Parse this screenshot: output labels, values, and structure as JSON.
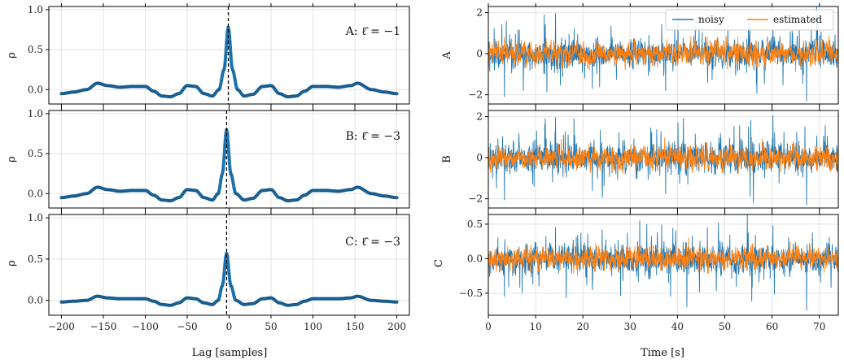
{
  "colors": {
    "series": "#1f77b4",
    "estimated": "#ff7f0e",
    "grid": "#e3e3e3",
    "axis": "#000000",
    "zero_lag_line": "#000000"
  },
  "chart_data": [
    {
      "type": "line",
      "panel": "A",
      "annotation": "A: ℓ̂ = −1",
      "ylabel": "ρ",
      "xlim": [
        -215,
        215
      ],
      "ylim": [
        -0.18,
        1.04
      ],
      "yticks": [
        0.0,
        0.5,
        1.0
      ],
      "ytick_labels": [
        "0.0",
        "0.5",
        "1.0"
      ],
      "grid": true,
      "zero_lag_marker": -1,
      "peak_rho": 0.78,
      "shape_points": [
        [
          -200,
          -0.05
        ],
        [
          -185,
          -0.03
        ],
        [
          -170,
          0.0
        ],
        [
          -157,
          0.08
        ],
        [
          -145,
          0.05
        ],
        [
          -130,
          0.03
        ],
        [
          -115,
          0.04
        ],
        [
          -100,
          0.04
        ],
        [
          -90,
          -0.02
        ],
        [
          -80,
          -0.08
        ],
        [
          -70,
          -0.09
        ],
        [
          -60,
          -0.05
        ],
        [
          -50,
          0.05
        ],
        [
          -40,
          0.04
        ],
        [
          -30,
          -0.05
        ],
        [
          -20,
          -0.08
        ],
        [
          -12,
          0.0
        ],
        [
          -6,
          0.25
        ],
        [
          -1,
          0.78
        ],
        [
          4,
          0.25
        ],
        [
          10,
          0.0
        ],
        [
          18,
          -0.08
        ],
        [
          28,
          -0.06
        ],
        [
          40,
          0.04
        ],
        [
          50,
          0.05
        ],
        [
          60,
          -0.05
        ],
        [
          70,
          -0.09
        ],
        [
          80,
          -0.08
        ],
        [
          90,
          -0.02
        ],
        [
          100,
          0.04
        ],
        [
          115,
          0.04
        ],
        [
          130,
          0.03
        ],
        [
          145,
          0.05
        ],
        [
          153,
          0.08
        ],
        [
          170,
          0.0
        ],
        [
          185,
          -0.03
        ],
        [
          200,
          -0.05
        ]
      ]
    },
    {
      "type": "line",
      "panel": "B",
      "annotation": "B: ℓ̂ = −3",
      "ylabel": "ρ",
      "xlim": [
        -215,
        215
      ],
      "ylim": [
        -0.18,
        1.04
      ],
      "yticks": [
        0.0,
        0.5,
        1.0
      ],
      "ytick_labels": [
        "0.0",
        "0.5",
        "1.0"
      ],
      "grid": true,
      "zero_lag_marker": -3,
      "peak_rho": 0.8,
      "shape_points": [
        [
          -200,
          -0.05
        ],
        [
          -185,
          -0.03
        ],
        [
          -170,
          0.0
        ],
        [
          -157,
          0.08
        ],
        [
          -145,
          0.05
        ],
        [
          -130,
          0.03
        ],
        [
          -115,
          0.04
        ],
        [
          -100,
          0.04
        ],
        [
          -90,
          -0.02
        ],
        [
          -80,
          -0.08
        ],
        [
          -70,
          -0.09
        ],
        [
          -60,
          -0.05
        ],
        [
          -50,
          0.05
        ],
        [
          -40,
          0.04
        ],
        [
          -30,
          -0.05
        ],
        [
          -20,
          -0.08
        ],
        [
          -13,
          0.0
        ],
        [
          -8,
          0.25
        ],
        [
          -3,
          0.8
        ],
        [
          2,
          0.25
        ],
        [
          8,
          0.0
        ],
        [
          18,
          -0.08
        ],
        [
          28,
          -0.06
        ],
        [
          40,
          0.04
        ],
        [
          50,
          0.05
        ],
        [
          60,
          -0.05
        ],
        [
          70,
          -0.09
        ],
        [
          80,
          -0.08
        ],
        [
          90,
          -0.02
        ],
        [
          100,
          0.04
        ],
        [
          115,
          0.04
        ],
        [
          130,
          0.03
        ],
        [
          145,
          0.05
        ],
        [
          153,
          0.08
        ],
        [
          170,
          0.0
        ],
        [
          185,
          -0.03
        ],
        [
          200,
          -0.05
        ]
      ]
    },
    {
      "type": "line",
      "panel": "C",
      "annotation": "C: ℓ̂ = −3",
      "ylabel": "ρ",
      "xlabel": "Lag [samples]",
      "xlim": [
        -215,
        215
      ],
      "ylim": [
        -0.18,
        1.04
      ],
      "xticks": [
        -200,
        -150,
        -100,
        -50,
        0,
        50,
        100,
        150,
        200
      ],
      "xtick_labels": [
        "−200",
        "−150",
        "−100",
        "−50",
        "0",
        "50",
        "100",
        "150",
        "200"
      ],
      "yticks": [
        0.0,
        0.5,
        1.0
      ],
      "ytick_labels": [
        "0.0",
        "0.5",
        "1.0"
      ],
      "grid": true,
      "zero_lag_marker": -3,
      "peak_rho": 0.57,
      "shape_points": [
        [
          -200,
          -0.02
        ],
        [
          -185,
          -0.01
        ],
        [
          -170,
          0.0
        ],
        [
          -157,
          0.05
        ],
        [
          -145,
          0.03
        ],
        [
          -130,
          0.02
        ],
        [
          -115,
          0.02
        ],
        [
          -100,
          0.02
        ],
        [
          -90,
          -0.01
        ],
        [
          -80,
          -0.05
        ],
        [
          -70,
          -0.06
        ],
        [
          -60,
          -0.03
        ],
        [
          -50,
          0.03
        ],
        [
          -40,
          0.02
        ],
        [
          -30,
          -0.03
        ],
        [
          -20,
          -0.05
        ],
        [
          -13,
          0.0
        ],
        [
          -8,
          0.18
        ],
        [
          -3,
          0.57
        ],
        [
          2,
          0.18
        ],
        [
          8,
          0.0
        ],
        [
          18,
          -0.05
        ],
        [
          28,
          -0.04
        ],
        [
          40,
          0.02
        ],
        [
          50,
          0.03
        ],
        [
          60,
          -0.03
        ],
        [
          70,
          -0.06
        ],
        [
          80,
          -0.05
        ],
        [
          90,
          -0.01
        ],
        [
          100,
          0.02
        ],
        [
          115,
          0.02
        ],
        [
          130,
          0.02
        ],
        [
          145,
          0.03
        ],
        [
          153,
          0.05
        ],
        [
          170,
          0.0
        ],
        [
          185,
          -0.01
        ],
        [
          200,
          -0.02
        ]
      ]
    },
    {
      "type": "line",
      "panel": "A",
      "ylabel": "A",
      "xlim": [
        0,
        74
      ],
      "ylim": [
        -2.45,
        2.3
      ],
      "yticks": [
        -2,
        0,
        2
      ],
      "ytick_labels": [
        "−2",
        "0",
        "2"
      ],
      "grid": true,
      "legend": {
        "placement": "top-right",
        "entries": [
          "noisy",
          "estimated"
        ]
      },
      "series": [
        {
          "name": "noisy",
          "amplitude": 0.45,
          "spikes": [
            [
              3.4,
              -2.1
            ],
            [
              14.2,
              1.95
            ],
            [
              37.5,
              -1.8
            ],
            [
              40.1,
              1.75
            ],
            [
              67.3,
              -2.3
            ],
            [
              60.2,
              1.6
            ],
            [
              22.0,
              -1.7
            ],
            [
              55.0,
              1.5
            ]
          ]
        },
        {
          "name": "estimated",
          "amplitude": 0.38,
          "spikes": []
        }
      ]
    },
    {
      "type": "line",
      "panel": "B",
      "ylabel": "B",
      "xlim": [
        0,
        74
      ],
      "ylim": [
        -2.45,
        2.3
      ],
      "yticks": [
        -2,
        0,
        2
      ],
      "ytick_labels": [
        "−2",
        "0",
        "2"
      ],
      "grid": true,
      "series": [
        {
          "name": "noisy",
          "amplitude": 0.45,
          "spikes": [
            [
              3.4,
              -2.05
            ],
            [
              14.2,
              1.95
            ],
            [
              37.5,
              -1.75
            ],
            [
              40.1,
              1.7
            ],
            [
              67.3,
              -2.3
            ],
            [
              60.2,
              2.05
            ],
            [
              22.0,
              -1.6
            ],
            [
              55.0,
              1.5
            ]
          ]
        },
        {
          "name": "estimated",
          "amplitude": 0.38,
          "spikes": []
        }
      ]
    },
    {
      "type": "line",
      "panel": "C",
      "ylabel": "C",
      "xlabel": "Time [s]",
      "xlim": [
        0,
        74
      ],
      "ylim": [
        -0.82,
        0.64
      ],
      "xticks": [
        0,
        10,
        20,
        30,
        40,
        50,
        60,
        70
      ],
      "xtick_labels": [
        "0",
        "10",
        "20",
        "30",
        "40",
        "50",
        "60",
        "70"
      ],
      "yticks": [
        -0.5,
        0.0,
        0.5
      ],
      "ytick_labels": [
        "−0.5",
        "0.0",
        "0.5"
      ],
      "grid": true,
      "series": [
        {
          "name": "noisy",
          "amplitude": 0.14,
          "spikes": [
            [
              3.4,
              -0.55
            ],
            [
              14.2,
              0.45
            ],
            [
              32.0,
              0.55
            ],
            [
              33.5,
              0.5
            ],
            [
              42.0,
              -0.7
            ],
            [
              67.3,
              -0.75
            ],
            [
              60.2,
              0.48
            ],
            [
              22.0,
              -0.45
            ]
          ]
        },
        {
          "name": "estimated",
          "amplitude": 0.11,
          "spikes": []
        }
      ]
    }
  ]
}
